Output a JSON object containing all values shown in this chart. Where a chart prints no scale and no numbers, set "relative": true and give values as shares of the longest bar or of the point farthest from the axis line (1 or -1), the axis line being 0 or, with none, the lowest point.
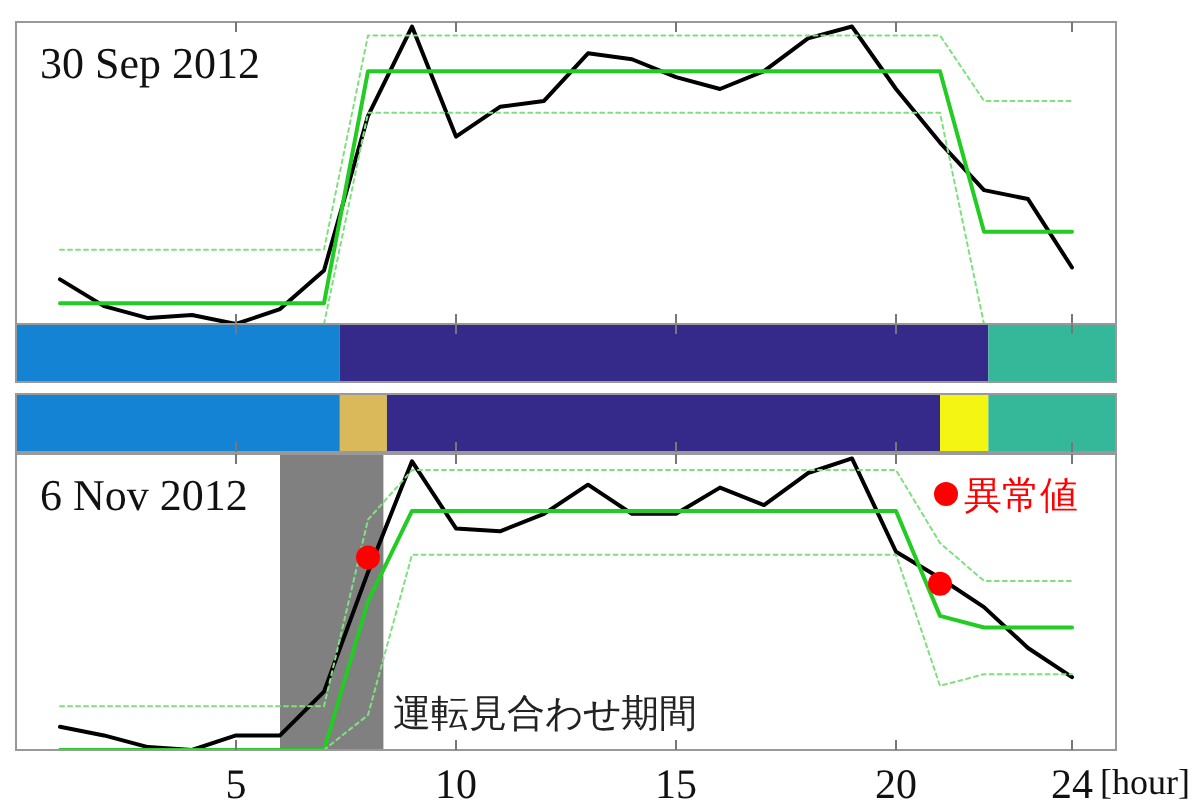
{
  "chart_data": [
    {
      "type": "line",
      "title": "30 Sep 2012",
      "relative": true,
      "xlim": [
        0,
        25
      ],
      "xticks": [
        5,
        10,
        15,
        20,
        24
      ],
      "tick_labels": false,
      "grid": false,
      "x": [
        1,
        2,
        3,
        4,
        5,
        6,
        7,
        8,
        9,
        10,
        11,
        12,
        13,
        14,
        15,
        16,
        17,
        18,
        19,
        20,
        21,
        22,
        23,
        24
      ],
      "series": [
        {
          "color": "#000000",
          "values": [
            0.15,
            0.06,
            0.02,
            0.03,
            0,
            0.05,
            0.18,
            0.7,
            1.0,
            0.63,
            0.73,
            0.75,
            0.91,
            0.89,
            0.83,
            0.79,
            0.85,
            0.96,
            1.0,
            0.79,
            0.61,
            0.45,
            0.42,
            0.19
          ]
        },
        {
          "color": "#22cc22",
          "values": [
            0.07,
            0.07,
            0.07,
            0.07,
            0.07,
            0.07,
            0.07,
            0.85,
            0.85,
            0.85,
            0.85,
            0.85,
            0.85,
            0.85,
            0.85,
            0.85,
            0.85,
            0.85,
            0.85,
            0.85,
            0.85,
            0.31,
            0.31,
            0.31
          ]
        },
        {
          "color": "#80e080",
          "line_style": "dotted",
          "values": [
            0.25,
            0.25,
            0.25,
            0.25,
            0.25,
            0.25,
            0.25,
            0.97,
            0.97,
            0.97,
            0.97,
            0.97,
            0.97,
            0.97,
            0.97,
            0.97,
            0.97,
            0.97,
            0.97,
            0.97,
            0.97,
            0.75,
            0.75,
            0.75
          ]
        },
        {
          "color": "#80e080",
          "line_style": "dotted",
          "values": [
            null,
            null,
            null,
            null,
            null,
            null,
            0,
            0.71,
            0.71,
            0.71,
            0.71,
            0.71,
            0.71,
            0.71,
            0.71,
            0.71,
            0.71,
            0.71,
            0.71,
            0.71,
            0.71,
            0,
            null,
            null
          ]
        }
      ]
    },
    {
      "type": "bar",
      "orientation": "horizontal",
      "stacked": true,
      "xlim": [
        0,
        25
      ],
      "xticks": [
        5,
        10,
        15,
        20,
        24
      ],
      "tick_labels": false,
      "categories": [
        null,
        null
      ],
      "series": [
        {
          "color": "#1483d4",
          "values": [
            7.36,
            7.36
          ]
        },
        {
          "color": "#d9b95a",
          "values": [
            null,
            1.07
          ]
        },
        {
          "color": "#35298a",
          "values": [
            14.74,
            12.57
          ]
        },
        {
          "color": "#f5f514",
          "values": [
            null,
            1.1
          ]
        },
        {
          "color": "#35b89a",
          "values": [
            2.9,
            2.9
          ]
        }
      ]
    },
    {
      "type": "line",
      "title": "6 Nov 2012",
      "relative": true,
      "xlim": [
        0,
        25
      ],
      "xticks": [
        5,
        10,
        15,
        20,
        24
      ],
      "xlabel": "[hour]",
      "grid": false,
      "legend": "top right",
      "x": [
        1,
        2,
        3,
        4,
        5,
        6,
        7,
        8,
        9,
        10,
        11,
        12,
        13,
        14,
        15,
        16,
        17,
        18,
        19,
        20,
        21,
        22,
        23,
        24
      ],
      "bands": [
        {
          "axis": "x",
          "from": 6,
          "to": 8.35,
          "label": "運転見合わせ期間",
          "color": "#808080"
        }
      ],
      "series": [
        {
          "color": "#000000",
          "values": [
            0.08,
            0.05,
            0.01,
            0,
            0.05,
            0.05,
            0.2,
            0.61,
            0.99,
            0.76,
            0.75,
            0.81,
            0.91,
            0.81,
            0.81,
            0.9,
            0.84,
            0.95,
            1.0,
            0.68,
            0.59,
            0.49,
            0.35,
            0.25
          ]
        },
        {
          "color": "#22cc22",
          "values": [
            0,
            0,
            0,
            0,
            0,
            0,
            0,
            0.51,
            0.82,
            0.82,
            0.82,
            0.82,
            0.82,
            0.82,
            0.82,
            0.82,
            0.82,
            0.82,
            0.82,
            0.82,
            0.46,
            0.42,
            0.42,
            0.42
          ]
        },
        {
          "color": "#80e080",
          "line_style": "dotted",
          "values": [
            0.15,
            0.15,
            0.15,
            0.15,
            0.15,
            0.15,
            0.15,
            0.79,
            0.96,
            0.96,
            0.96,
            0.96,
            0.96,
            0.96,
            0.96,
            0.96,
            0.96,
            0.96,
            0.96,
            0.96,
            0.71,
            0.58,
            0.58,
            0.58
          ]
        },
        {
          "color": "#80e080",
          "line_style": "dotted",
          "values": [
            null,
            null,
            null,
            null,
            null,
            null,
            0,
            0.12,
            0.67,
            0.67,
            0.67,
            0.67,
            0.67,
            0.67,
            0.67,
            0.67,
            0.67,
            0.67,
            0.67,
            0.67,
            0.22,
            0.26,
            0.26,
            0.26
          ]
        },
        {
          "type": "scatter",
          "name": "異常値",
          "color": "#ff0000",
          "marker": "circle",
          "x": [
            8,
            21
          ],
          "values": [
            0.66,
            0.57
          ]
        }
      ]
    }
  ]
}
